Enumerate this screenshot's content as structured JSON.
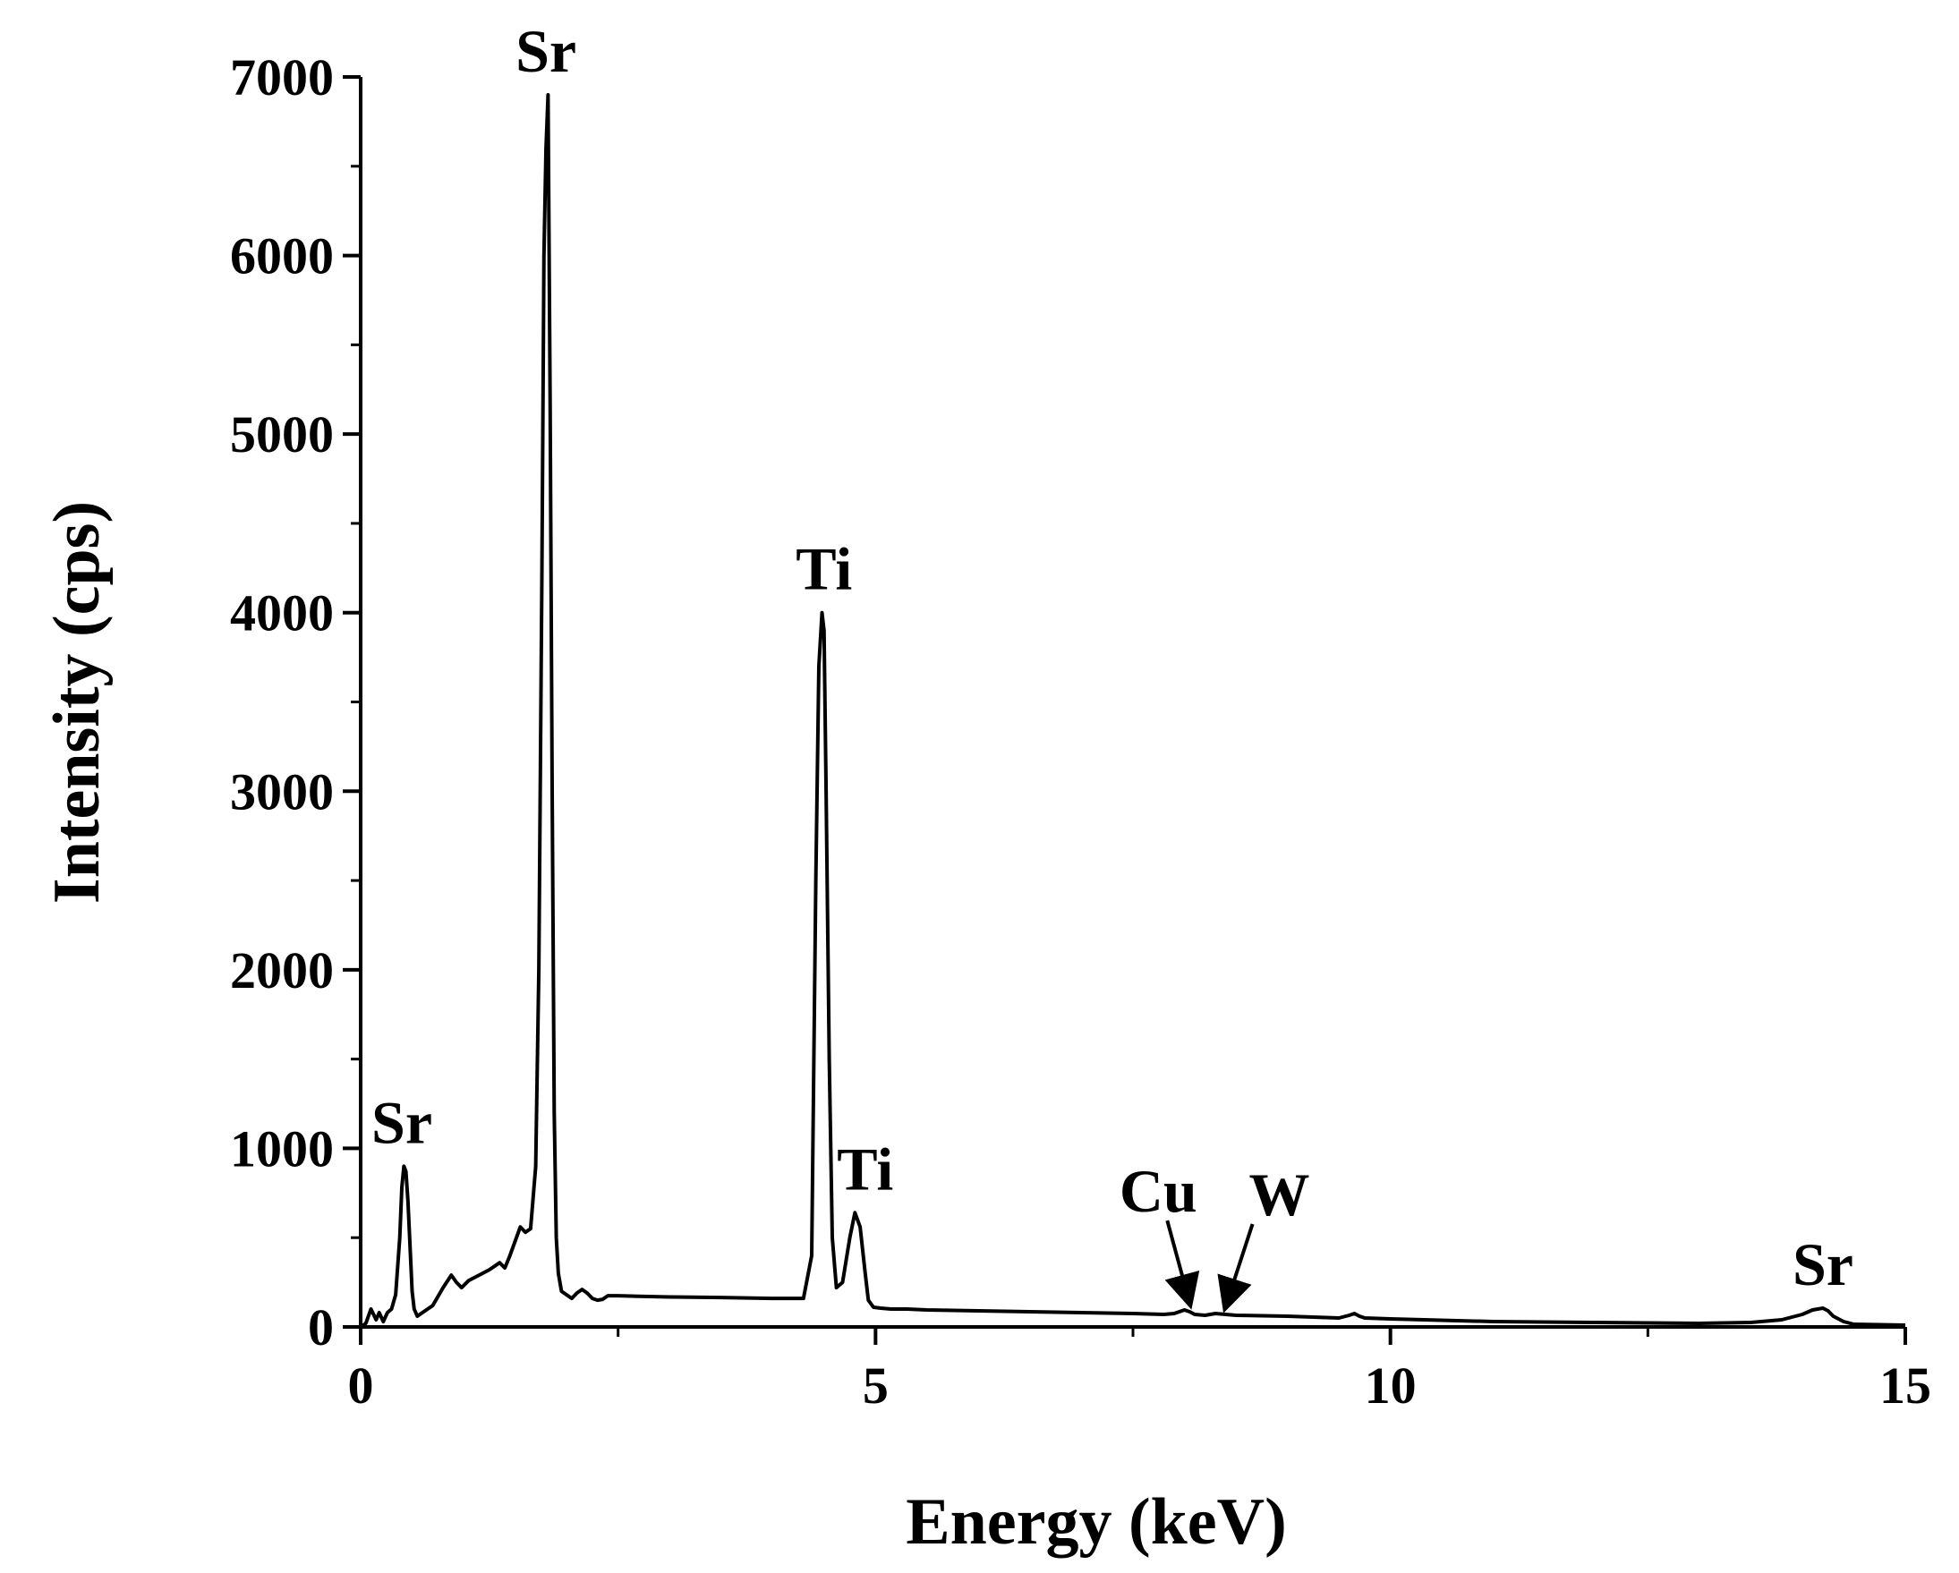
{
  "chart_data": {
    "type": "line",
    "title": "",
    "xlabel": "Energy (keV)",
    "ylabel": "Intensity (cps)",
    "xlim": [
      0,
      15
    ],
    "ylim": [
      0,
      7000
    ],
    "xticks": [
      0,
      5,
      10,
      15
    ],
    "yticks": [
      0,
      1000,
      2000,
      3000,
      4000,
      5000,
      6000,
      7000
    ],
    "grid": false,
    "legend": "none",
    "line_color": "#000000",
    "series": [
      {
        "x": [
          0.0,
          0.05,
          0.1,
          0.15,
          0.18,
          0.22,
          0.26,
          0.3,
          0.34,
          0.38,
          0.4,
          0.42,
          0.44,
          0.46,
          0.48,
          0.5,
          0.52,
          0.55,
          0.6,
          0.7,
          0.8,
          0.88,
          0.93,
          0.98,
          1.05,
          1.15,
          1.25,
          1.35,
          1.4,
          1.45,
          1.5,
          1.55,
          1.6,
          1.65,
          1.7,
          1.73,
          1.76,
          1.78,
          1.8,
          1.82,
          1.84,
          1.86,
          1.88,
          1.9,
          1.92,
          1.95,
          2.0,
          2.05,
          2.1,
          2.15,
          2.2,
          2.25,
          2.3,
          2.35,
          2.4,
          2.5,
          2.7,
          3.0,
          3.5,
          4.0,
          4.3,
          4.38,
          4.42,
          4.45,
          4.48,
          4.5,
          4.52,
          4.55,
          4.58,
          4.62,
          4.68,
          4.75,
          4.8,
          4.85,
          4.9,
          4.93,
          4.98,
          5.05,
          5.15,
          5.3,
          5.5,
          6.0,
          7.0,
          7.5,
          7.8,
          7.9,
          7.95,
          8.0,
          8.05,
          8.1,
          8.2,
          8.3,
          8.4,
          8.5,
          9.0,
          9.5,
          9.6,
          9.65,
          9.7,
          9.75,
          10.0,
          11.0,
          12.0,
          13.0,
          13.5,
          13.8,
          14.0,
          14.1,
          14.2,
          14.25,
          14.3,
          14.4,
          14.5,
          15.0
        ],
        "y": [
          0,
          20,
          100,
          40,
          80,
          30,
          80,
          100,
          180,
          500,
          780,
          900,
          870,
          700,
          450,
          200,
          100,
          60,
          80,
          120,
          220,
          290,
          250,
          220,
          260,
          290,
          320,
          360,
          330,
          400,
          480,
          560,
          530,
          550,
          900,
          2000,
          4200,
          6000,
          6600,
          6900,
          5200,
          3000,
          1200,
          500,
          300,
          200,
          180,
          160,
          190,
          210,
          190,
          160,
          150,
          155,
          175,
          175,
          172,
          168,
          165,
          160,
          160,
          400,
          2500,
          3700,
          4000,
          3900,
          3000,
          1500,
          500,
          220,
          250,
          500,
          640,
          560,
          300,
          150,
          110,
          105,
          100,
          100,
          95,
          90,
          80,
          75,
          70,
          75,
          85,
          95,
          85,
          70,
          65,
          75,
          70,
          65,
          60,
          50,
          65,
          75,
          60,
          50,
          45,
          30,
          25,
          20,
          25,
          40,
          70,
          95,
          105,
          90,
          60,
          30,
          15,
          10
        ]
      }
    ],
    "annotations": [
      {
        "text": "Sr",
        "x": 0.4,
        "y": 900
      },
      {
        "text": "Sr",
        "x": 1.8,
        "y": 6900
      },
      {
        "text": "Ti",
        "x": 4.5,
        "y": 4000
      },
      {
        "text": "Ti",
        "x": 4.9,
        "y": 640
      },
      {
        "text": "Cu",
        "x": 8.05,
        "y": 95,
        "arrow": true
      },
      {
        "text": "W",
        "x": 8.4,
        "y": 75,
        "arrow": true
      },
      {
        "text": "Sr",
        "x": 14.2,
        "y": 105
      }
    ]
  }
}
